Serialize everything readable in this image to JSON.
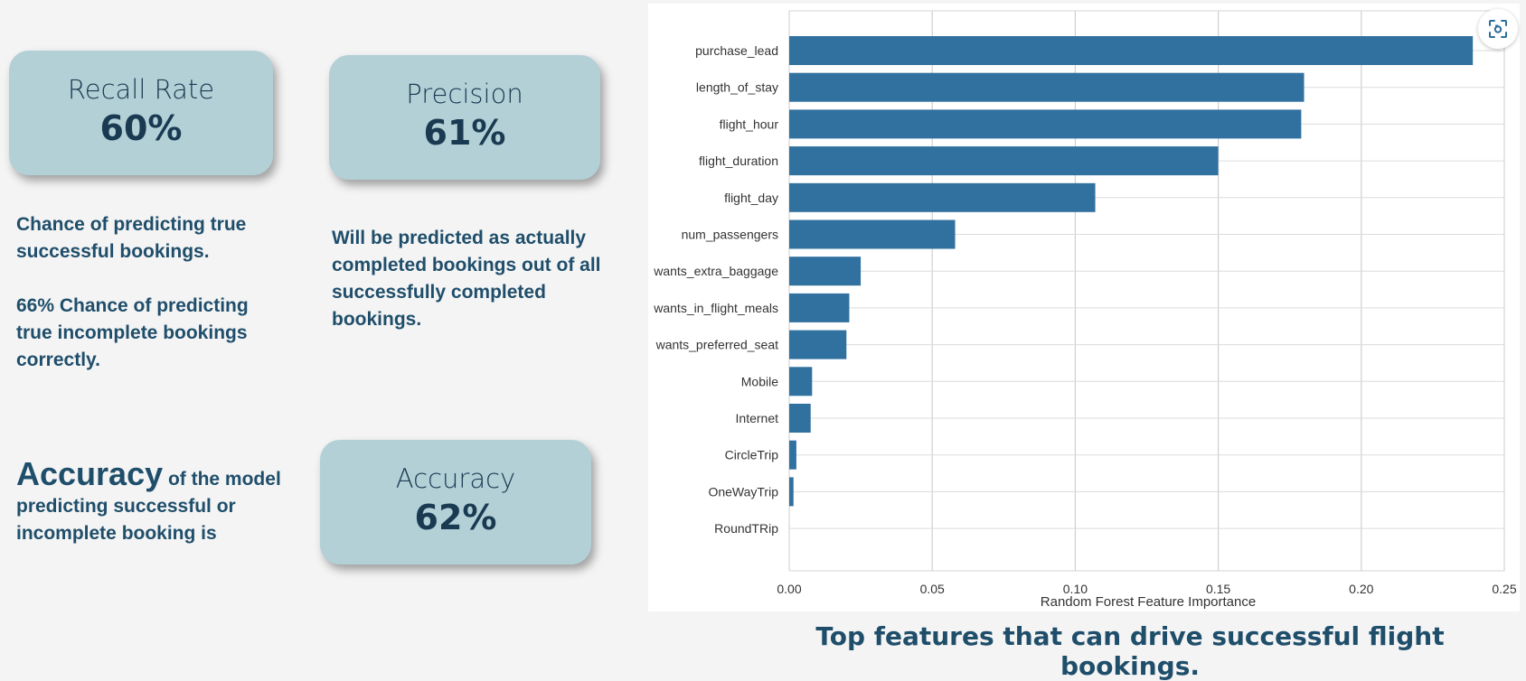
{
  "cards": {
    "recall": {
      "label": "Recall Rate",
      "value": "60%"
    },
    "precision": {
      "label": "Precision",
      "value": "61%"
    },
    "accuracy": {
      "label": "Accuracy",
      "value": "62%"
    }
  },
  "recall_desc": {
    "line1": "Chance of predicting true successful bookings.",
    "line2": "66% Chance of predicting true incomplete bookings correctly."
  },
  "precision_desc": "Will be predicted as actually completed bookings out of all successfully completed bookings.",
  "accuracy_desc": {
    "big": "Accuracy",
    "rest": " of the model predicting successful or incomplete booking is"
  },
  "caption": "Top features that can drive successful flight bookings.",
  "icons": {
    "expand": "scan-expand-icon"
  },
  "chart_data": {
    "type": "bar",
    "orientation": "horizontal",
    "categories": [
      "purchase_lead",
      "length_of_stay",
      "flight_hour",
      "flight_duration",
      "flight_day",
      "num_passengers",
      "wants_extra_baggage",
      "wants_in_flight_meals",
      "wants_preferred_seat",
      "Mobile",
      "Internet",
      "CircleTrip",
      "OneWayTrip",
      "RoundTRip"
    ],
    "values": [
      0.239,
      0.18,
      0.179,
      0.15,
      0.107,
      0.058,
      0.025,
      0.021,
      0.02,
      0.008,
      0.0075,
      0.0025,
      0.0015,
      0.0
    ],
    "xlabel": "Random Forest Feature Importance",
    "ylabel": "",
    "xlim": [
      0,
      0.25
    ],
    "xticks": [
      "0.00",
      "0.05",
      "0.10",
      "0.15",
      "0.20",
      "0.25"
    ],
    "bar_color": "#31719f",
    "grid": true
  }
}
